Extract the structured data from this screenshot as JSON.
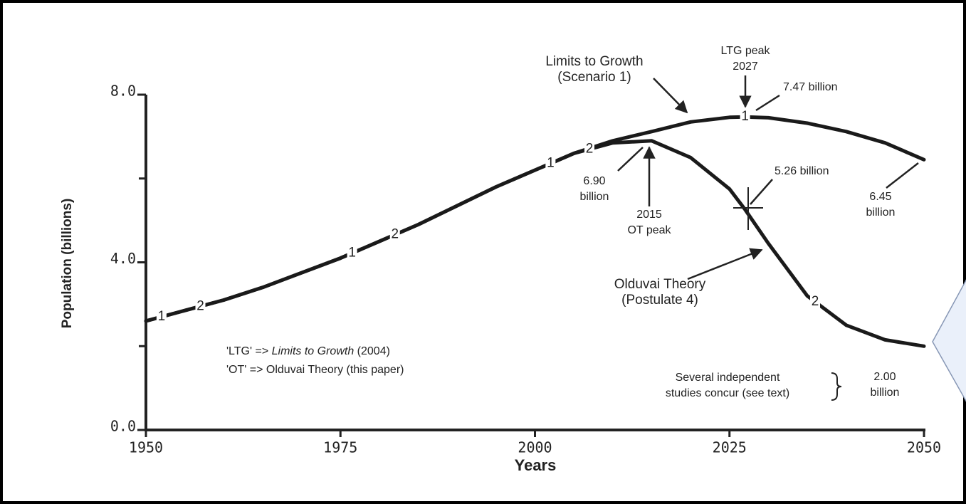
{
  "chart_data": {
    "type": "line",
    "x_label": "Years",
    "y_label": "Population (billions)",
    "x": [
      1950,
      1955,
      1960,
      1965,
      1970,
      1975,
      1980,
      1985,
      1990,
      1995,
      2000,
      2005,
      2010,
      2015,
      2020,
      2025,
      2027,
      2030,
      2035,
      2040,
      2045,
      2050
    ],
    "series": [
      {
        "name": "1",
        "color": "#1a1a1a",
        "values": [
          2.6,
          2.85,
          3.1,
          3.4,
          3.75,
          4.1,
          4.5,
          4.9,
          5.35,
          5.8,
          6.2,
          6.6,
          6.9,
          7.12,
          7.35,
          7.46,
          7.47,
          7.45,
          7.32,
          7.12,
          6.85,
          6.45
        ]
      },
      {
        "name": "2",
        "color": "#1a1a1a",
        "values": [
          2.6,
          2.85,
          3.1,
          3.4,
          3.75,
          4.1,
          4.5,
          4.9,
          5.35,
          5.8,
          6.2,
          6.6,
          6.85,
          6.9,
          6.5,
          5.75,
          5.26,
          4.45,
          3.2,
          2.5,
          2.15,
          2.0
        ]
      }
    ],
    "xlim": [
      1950,
      2050
    ],
    "xticks": [
      1950,
      1975,
      2000,
      2025,
      2050
    ],
    "ylim": [
      0,
      8
    ],
    "yticks": [
      {
        "value": 0,
        "label": "0.0"
      },
      {
        "value": 4,
        "label": "4.0"
      },
      {
        "value": 8,
        "label": "8.0"
      }
    ],
    "yminorticks": [
      2,
      6
    ],
    "annotations": [
      {
        "lines": [
          "Limits to Growth",
          "(Scenario 1)"
        ]
      },
      {
        "lines": [
          "LTG peak",
          "2027"
        ]
      },
      {
        "lines": [
          "7.47 billion"
        ]
      },
      {
        "lines": [
          "6.90",
          "billion"
        ]
      },
      {
        "lines": [
          "2015",
          "OT peak"
        ]
      },
      {
        "lines": [
          "5.26 billion"
        ]
      },
      {
        "lines": [
          "6.45",
          "billion"
        ]
      },
      {
        "lines": [
          "Olduvai Theory",
          "(Postulate 4)"
        ]
      },
      {
        "lines": [
          "Several independent",
          "studies concur (see text)"
        ]
      },
      {
        "lines": [
          "2.00",
          "billion"
        ]
      }
    ],
    "notes": [
      {
        "parts": [
          "'LTG' => ",
          "Limits to Growth",
          " (2004)"
        ]
      },
      {
        "parts": [
          "'OT' => Olduvai Theory (this paper)"
        ]
      }
    ]
  }
}
